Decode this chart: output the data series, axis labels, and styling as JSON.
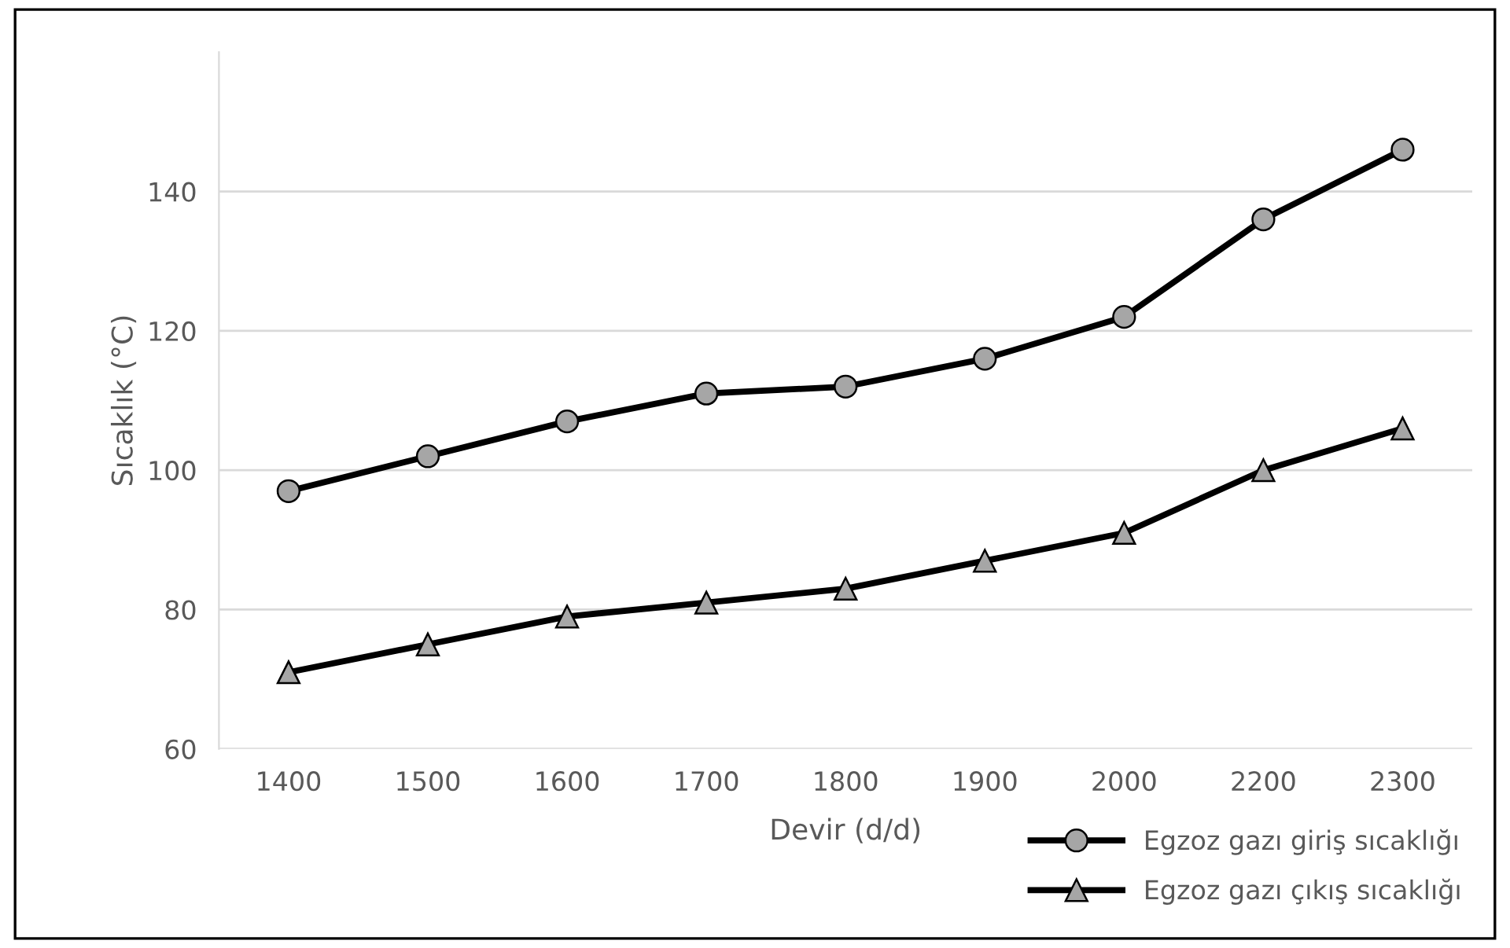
{
  "chart_data": {
    "type": "line",
    "xlabel": "Devir (d/d)",
    "ylabel": "Sıcaklık (°C)",
    "categories": [
      "1400",
      "1500",
      "1600",
      "1700",
      "1800",
      "1900",
      "2000",
      "2200",
      "2300"
    ],
    "series": [
      {
        "name": "Egzoz gazı giriş sıcaklığı",
        "color": "#000000",
        "marker": "circle",
        "values": [
          97,
          102,
          107,
          111,
          112,
          116,
          122,
          136,
          146
        ]
      },
      {
        "name": "Egzoz gazı çıkış sıcaklığı",
        "color": "#000000",
        "marker": "triangle",
        "values": [
          71,
          75,
          79,
          81,
          83,
          87,
          91,
          100,
          106
        ]
      }
    ],
    "ylim": [
      60,
      160
    ],
    "yticks": [
      60,
      80,
      100,
      120,
      140
    ],
    "grid": "y",
    "legend": "bottom right",
    "line_style": "solid"
  }
}
